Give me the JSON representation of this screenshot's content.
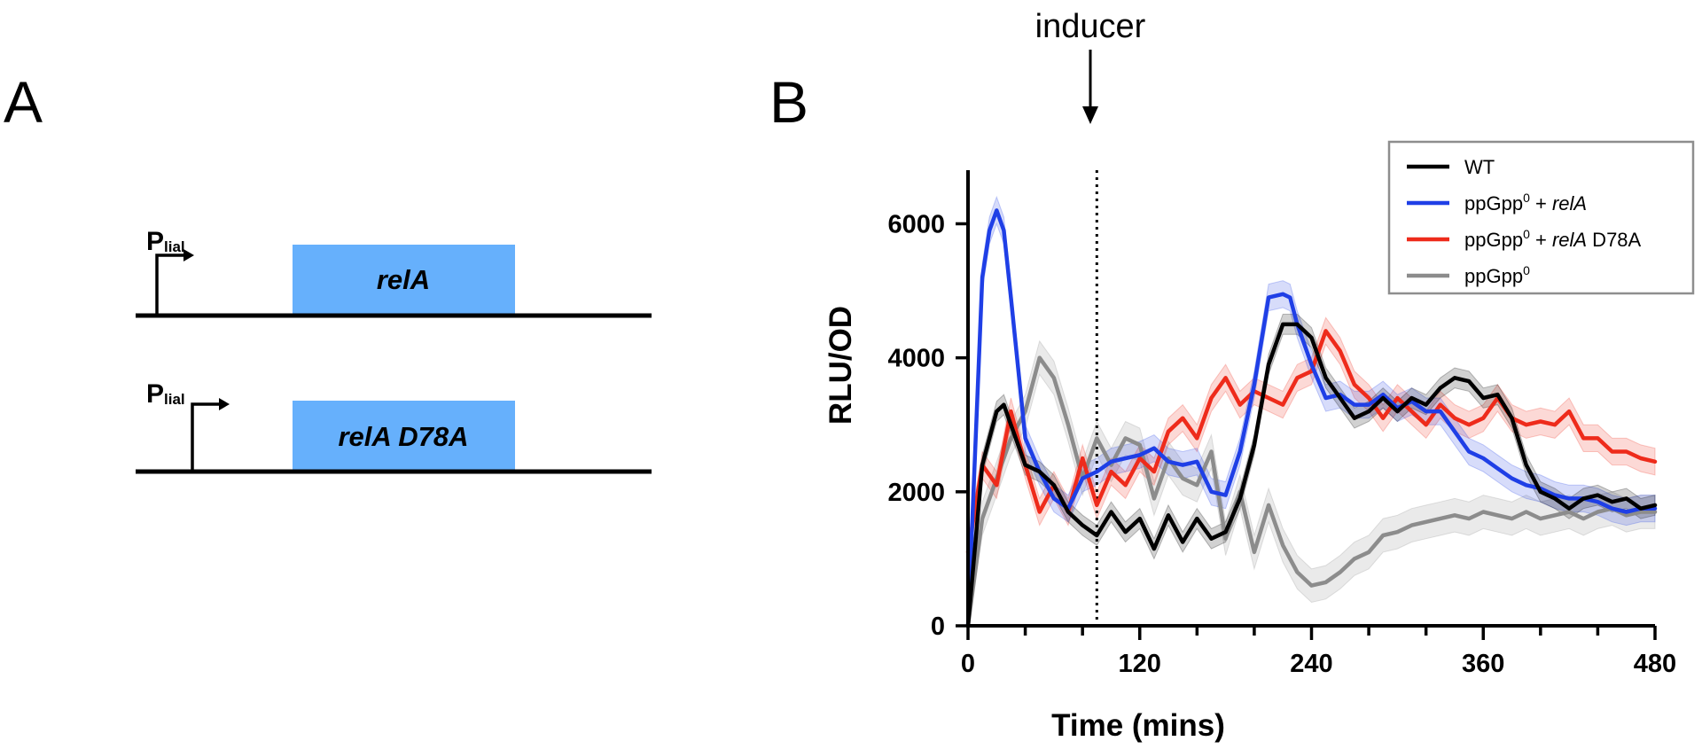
{
  "panel_a": {
    "letter": "A",
    "constructs": [
      {
        "promoter_main": "P",
        "promoter_sub": "lial",
        "gene": "relA",
        "color": "#66b0fc"
      },
      {
        "promoter_main": "P",
        "promoter_sub": "lial",
        "gene": "relA D78A",
        "color": "#66b0fc"
      }
    ]
  },
  "panel_b": {
    "letter": "B",
    "annotation": "inducer"
  },
  "chart_data": {
    "type": "line",
    "title": "",
    "xlabel": "Time (mins)",
    "ylabel": "RLU/OD",
    "xlim": [
      0,
      480
    ],
    "ylim": [
      0,
      6800
    ],
    "xticks": [
      0,
      120,
      240,
      360,
      480
    ],
    "xtick_labels": [
      "0",
      "120",
      "240",
      "360",
      "480"
    ],
    "yticks": [
      0,
      2000,
      4000,
      6000
    ],
    "ytick_labels": [
      "0",
      "2000",
      "4000",
      "6000"
    ],
    "grid": false,
    "legend_position": "top-right",
    "inducer_time": 90,
    "series": [
      {
        "name": "WT",
        "name_parts": [
          "WT"
        ],
        "color": "#000000",
        "x": [
          0,
          10,
          20,
          25,
          30,
          40,
          50,
          60,
          70,
          80,
          90,
          100,
          110,
          120,
          130,
          140,
          150,
          160,
          170,
          180,
          190,
          200,
          210,
          220,
          230,
          240,
          250,
          260,
          270,
          280,
          290,
          300,
          310,
          320,
          330,
          340,
          350,
          360,
          370,
          380,
          390,
          400,
          410,
          420,
          430,
          440,
          450,
          460,
          470,
          480
        ],
        "y": [
          0,
          2400,
          3200,
          3300,
          3000,
          2400,
          2300,
          2100,
          1700,
          1500,
          1350,
          1700,
          1400,
          1600,
          1150,
          1650,
          1250,
          1600,
          1300,
          1400,
          1900,
          2700,
          3900,
          4500,
          4500,
          4300,
          3700,
          3400,
          3100,
          3200,
          3400,
          3200,
          3400,
          3300,
          3550,
          3700,
          3650,
          3400,
          3450,
          3100,
          2400,
          2000,
          1900,
          1750,
          1900,
          1950,
          1850,
          1900,
          1750,
          1800
        ],
        "band": 150
      },
      {
        "name": "ppGpp0 + relA",
        "name_parts": [
          "ppGpp",
          "0",
          " + ",
          "relA",
          ""
        ],
        "color": "#1f3fe6",
        "x": [
          0,
          10,
          15,
          20,
          25,
          30,
          40,
          50,
          60,
          70,
          80,
          90,
          100,
          110,
          120,
          130,
          140,
          150,
          160,
          170,
          180,
          190,
          200,
          210,
          220,
          225,
          230,
          240,
          250,
          260,
          270,
          280,
          290,
          300,
          310,
          320,
          330,
          340,
          350,
          360,
          370,
          380,
          390,
          400,
          410,
          420,
          430,
          440,
          450,
          460,
          470,
          480
        ],
        "y": [
          0,
          5200,
          5900,
          6200,
          5900,
          4900,
          2800,
          2300,
          1900,
          1750,
          2200,
          2300,
          2450,
          2500,
          2550,
          2650,
          2450,
          2400,
          2450,
          2000,
          1950,
          2600,
          3600,
          4900,
          4950,
          4900,
          4500,
          3900,
          3400,
          3450,
          3300,
          3300,
          3450,
          3250,
          3350,
          3200,
          3200,
          2900,
          2600,
          2500,
          2350,
          2200,
          2100,
          2050,
          1950,
          1900,
          1900,
          1850,
          1750,
          1700,
          1750,
          1750
        ],
        "band": 200
      },
      {
        "name": "ppGpp0 + relA D78A",
        "name_parts": [
          "ppGpp",
          "0",
          " + ",
          "relA",
          " D78A"
        ],
        "color": "#ee2b1b",
        "x": [
          0,
          10,
          20,
          30,
          40,
          50,
          60,
          70,
          80,
          90,
          100,
          110,
          120,
          130,
          140,
          150,
          160,
          170,
          180,
          190,
          200,
          210,
          220,
          230,
          240,
          250,
          260,
          270,
          280,
          290,
          300,
          310,
          320,
          330,
          340,
          350,
          360,
          370,
          380,
          390,
          400,
          410,
          420,
          430,
          440,
          450,
          460,
          470,
          480
        ],
        "y": [
          1100,
          2400,
          2100,
          3200,
          2400,
          1700,
          2100,
          1700,
          2500,
          1800,
          2300,
          2100,
          2500,
          2300,
          2900,
          3100,
          2800,
          3400,
          3700,
          3300,
          3500,
          3400,
          3300,
          3700,
          3800,
          4400,
          4100,
          3600,
          3400,
          3100,
          3400,
          3200,
          3000,
          3300,
          3100,
          3000,
          3100,
          3400,
          3100,
          3000,
          3050,
          3000,
          3200,
          2800,
          2800,
          2600,
          2600,
          2500,
          2450
        ],
        "band": 200
      },
      {
        "name": "ppGpp0",
        "name_parts": [
          "ppGpp",
          "0"
        ],
        "color": "#8c8c8c",
        "x": [
          0,
          10,
          20,
          30,
          40,
          50,
          60,
          70,
          80,
          90,
          100,
          110,
          120,
          130,
          140,
          150,
          160,
          170,
          180,
          190,
          200,
          210,
          220,
          230,
          240,
          250,
          260,
          270,
          280,
          290,
          300,
          310,
          320,
          330,
          340,
          350,
          360,
          370,
          380,
          390,
          400,
          410,
          420,
          430,
          440,
          450,
          460,
          470,
          480
        ],
        "y": [
          0,
          1600,
          2200,
          2800,
          3200,
          4000,
          3700,
          3000,
          2200,
          2800,
          2400,
          2800,
          2700,
          1900,
          2500,
          2200,
          2100,
          2600,
          1300,
          2000,
          1100,
          1800,
          1200,
          800,
          600,
          650,
          800,
          1000,
          1100,
          1350,
          1400,
          1500,
          1550,
          1600,
          1650,
          1600,
          1700,
          1650,
          1600,
          1700,
          1600,
          1650,
          1700,
          1600,
          1700,
          1750,
          1650,
          1700,
          1700
        ],
        "band": 250
      }
    ]
  }
}
